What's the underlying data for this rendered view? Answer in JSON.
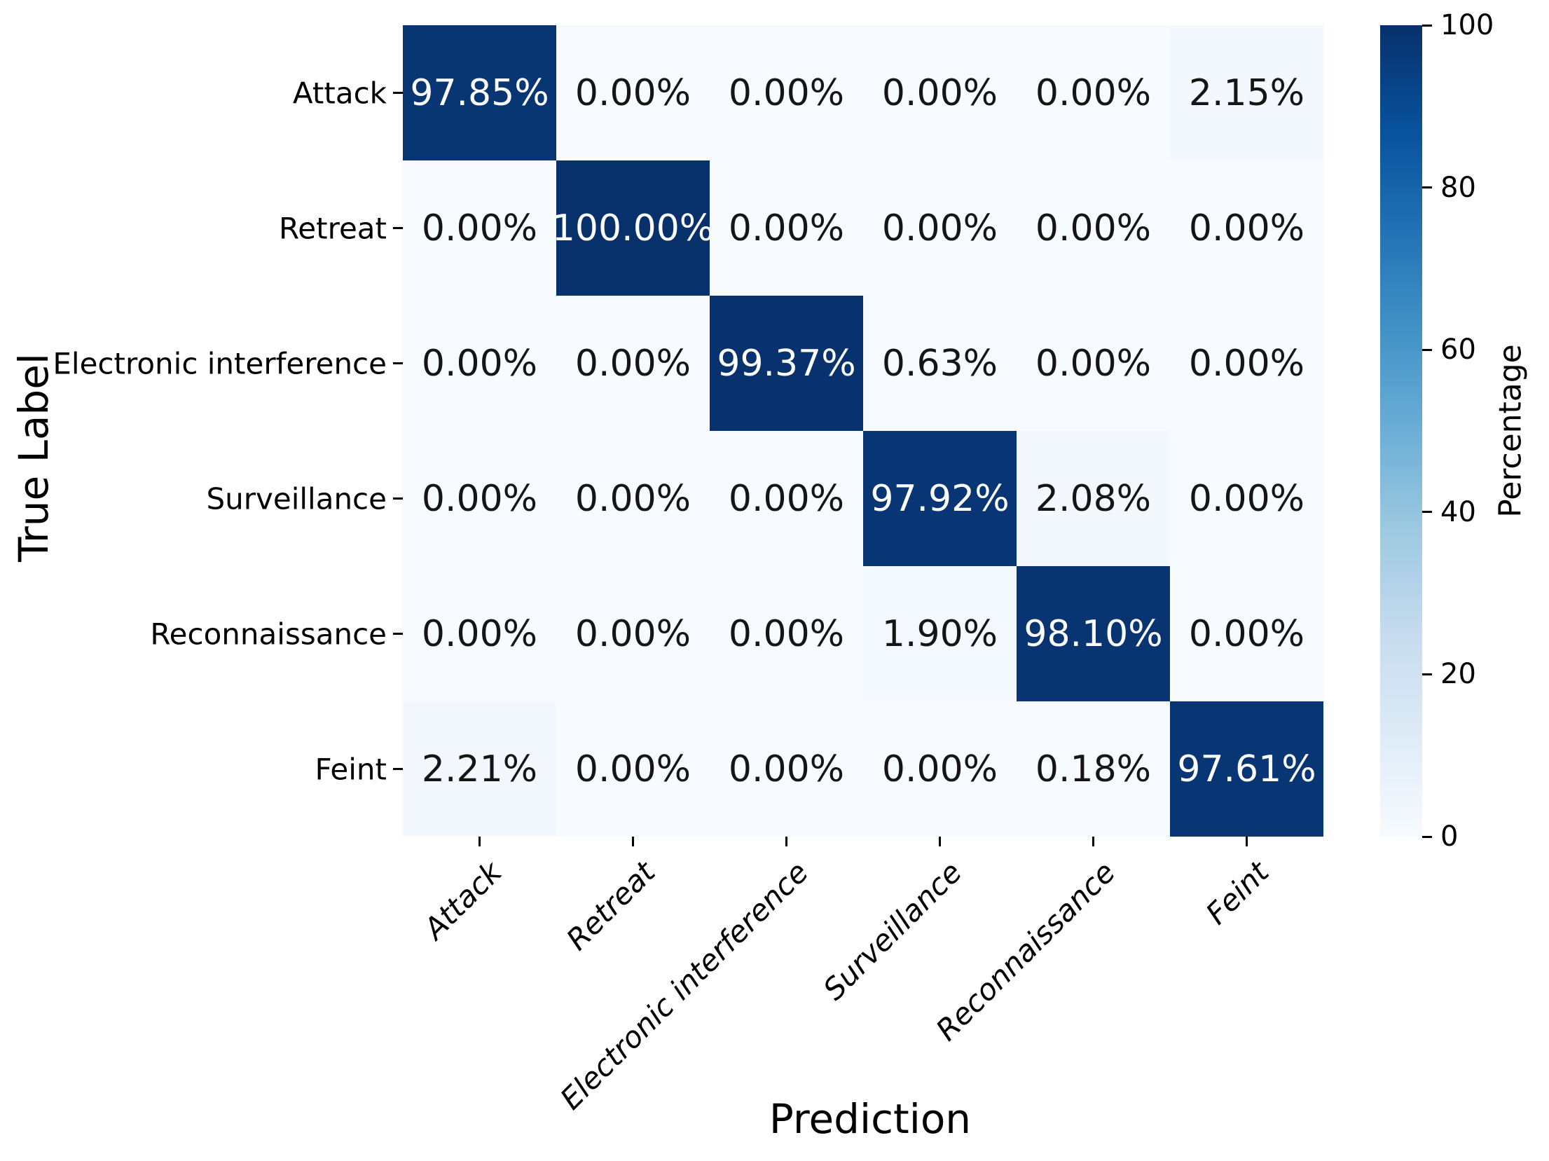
{
  "chart_data": {
    "type": "heatmap",
    "title": "",
    "xlabel": "Prediction",
    "ylabel": "True Label",
    "categories": [
      "Attack",
      "Retreat",
      "Electronic interference",
      "Surveillance",
      "Reconnaissance",
      "Feint"
    ],
    "x_categories": [
      "Attack",
      "Retreat",
      "Electronic interference",
      "Surveillance",
      "Reconnaissance",
      "Feint"
    ],
    "matrix_percent": [
      [
        97.85,
        0.0,
        0.0,
        0.0,
        0.0,
        2.15
      ],
      [
        0.0,
        100.0,
        0.0,
        0.0,
        0.0,
        0.0
      ],
      [
        0.0,
        0.0,
        99.37,
        0.63,
        0.0,
        0.0
      ],
      [
        0.0,
        0.0,
        0.0,
        97.92,
        2.08,
        0.0
      ],
      [
        0.0,
        0.0,
        0.0,
        1.9,
        98.1,
        0.0
      ],
      [
        2.21,
        0.0,
        0.0,
        0.0,
        0.18,
        97.61
      ]
    ],
    "value_suffix": "%",
    "value_decimals": 2,
    "colorbar": {
      "label": "Percentage",
      "ticks": [
        100,
        80,
        60,
        40,
        20,
        0
      ],
      "min": 0,
      "max": 100
    },
    "colormap": "Blues",
    "colormap_anchors_rgb": [
      [
        247,
        251,
        255
      ],
      [
        222,
        235,
        247
      ],
      [
        198,
        219,
        239
      ],
      [
        158,
        202,
        225
      ],
      [
        107,
        174,
        214
      ],
      [
        66,
        146,
        198
      ],
      [
        33,
        113,
        181
      ],
      [
        8,
        81,
        156
      ],
      [
        8,
        48,
        107
      ]
    ],
    "colors": {
      "annotation_dark_text": "#151515",
      "annotation_light_text": "#ffffff",
      "max_cell": "#08306b",
      "min_cell": "#f7fbff"
    },
    "grid": false,
    "legend_position": "right-colorbar"
  }
}
